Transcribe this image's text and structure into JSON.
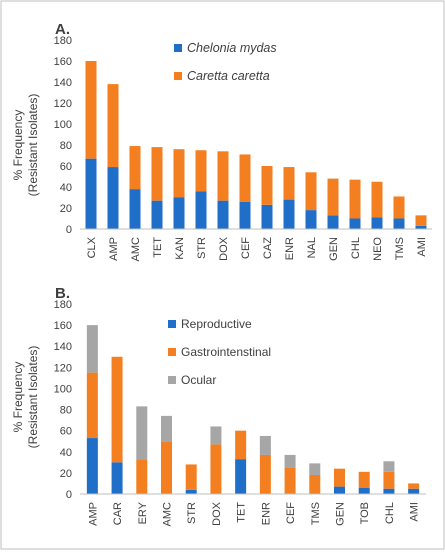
{
  "chart_data": [
    {
      "type": "bar",
      "stacked": true,
      "panel_label": "A.",
      "ylabel_line1": "% Frequency",
      "ylabel_line2": "(Resistant Isolates)",
      "ylim": [
        0,
        180
      ],
      "yticks": [
        0,
        20,
        40,
        60,
        80,
        100,
        120,
        140,
        160,
        180
      ],
      "grid": false,
      "legend_position": "top-center",
      "categories": [
        "CLX",
        "AMP",
        "AMC",
        "TET",
        "KAN",
        "STR",
        "DOX",
        "CEF",
        "CAZ",
        "ENR",
        "NAL",
        "GEN",
        "CHL",
        "NEO",
        "TMS",
        "AMI"
      ],
      "series": [
        {
          "name": "Chelonia mydas",
          "color": "#1f6fc8",
          "values": [
            67,
            59,
            38,
            27,
            30,
            36,
            27,
            26,
            23,
            28,
            18,
            13,
            10,
            11,
            10,
            3
          ]
        },
        {
          "name": "Caretta caretta",
          "color": "#f47f20",
          "values": [
            93,
            79,
            41,
            51,
            46,
            39,
            47,
            45,
            37,
            31,
            36,
            35,
            37,
            34,
            21,
            10
          ]
        }
      ]
    },
    {
      "type": "bar",
      "stacked": true,
      "panel_label": "B.",
      "ylabel_line1": "% Frequency",
      "ylabel_line2": "(Resistant Isolates)",
      "ylim": [
        0,
        180
      ],
      "yticks": [
        0,
        20,
        40,
        60,
        80,
        100,
        120,
        140,
        160,
        180
      ],
      "grid": false,
      "legend_position": "top-center",
      "categories": [
        "AMP",
        "CAR",
        "ERY",
        "AMC",
        "STR",
        "DOX",
        "TET",
        "ENR",
        "CEF",
        "TMS",
        "GEN",
        "TOB",
        "CHL",
        "AMI"
      ],
      "series": [
        {
          "name": "Reproductive",
          "color": "#1f6fc8",
          "values": [
            53,
            30,
            0,
            0,
            4,
            0,
            33,
            0,
            0,
            0,
            7,
            6,
            5,
            5
          ]
        },
        {
          "name": "Gastrointenstinal",
          "color": "#f47f20",
          "values": [
            62,
            100,
            33,
            50,
            24,
            47,
            27,
            37,
            25,
            18,
            17,
            15,
            16,
            5
          ]
        },
        {
          "name": "Ocular",
          "color": "#a6a6a6",
          "values": [
            45,
            0,
            50,
            24,
            0,
            17,
            0,
            18,
            12,
            11,
            0,
            0,
            10,
            0
          ]
        }
      ]
    }
  ]
}
